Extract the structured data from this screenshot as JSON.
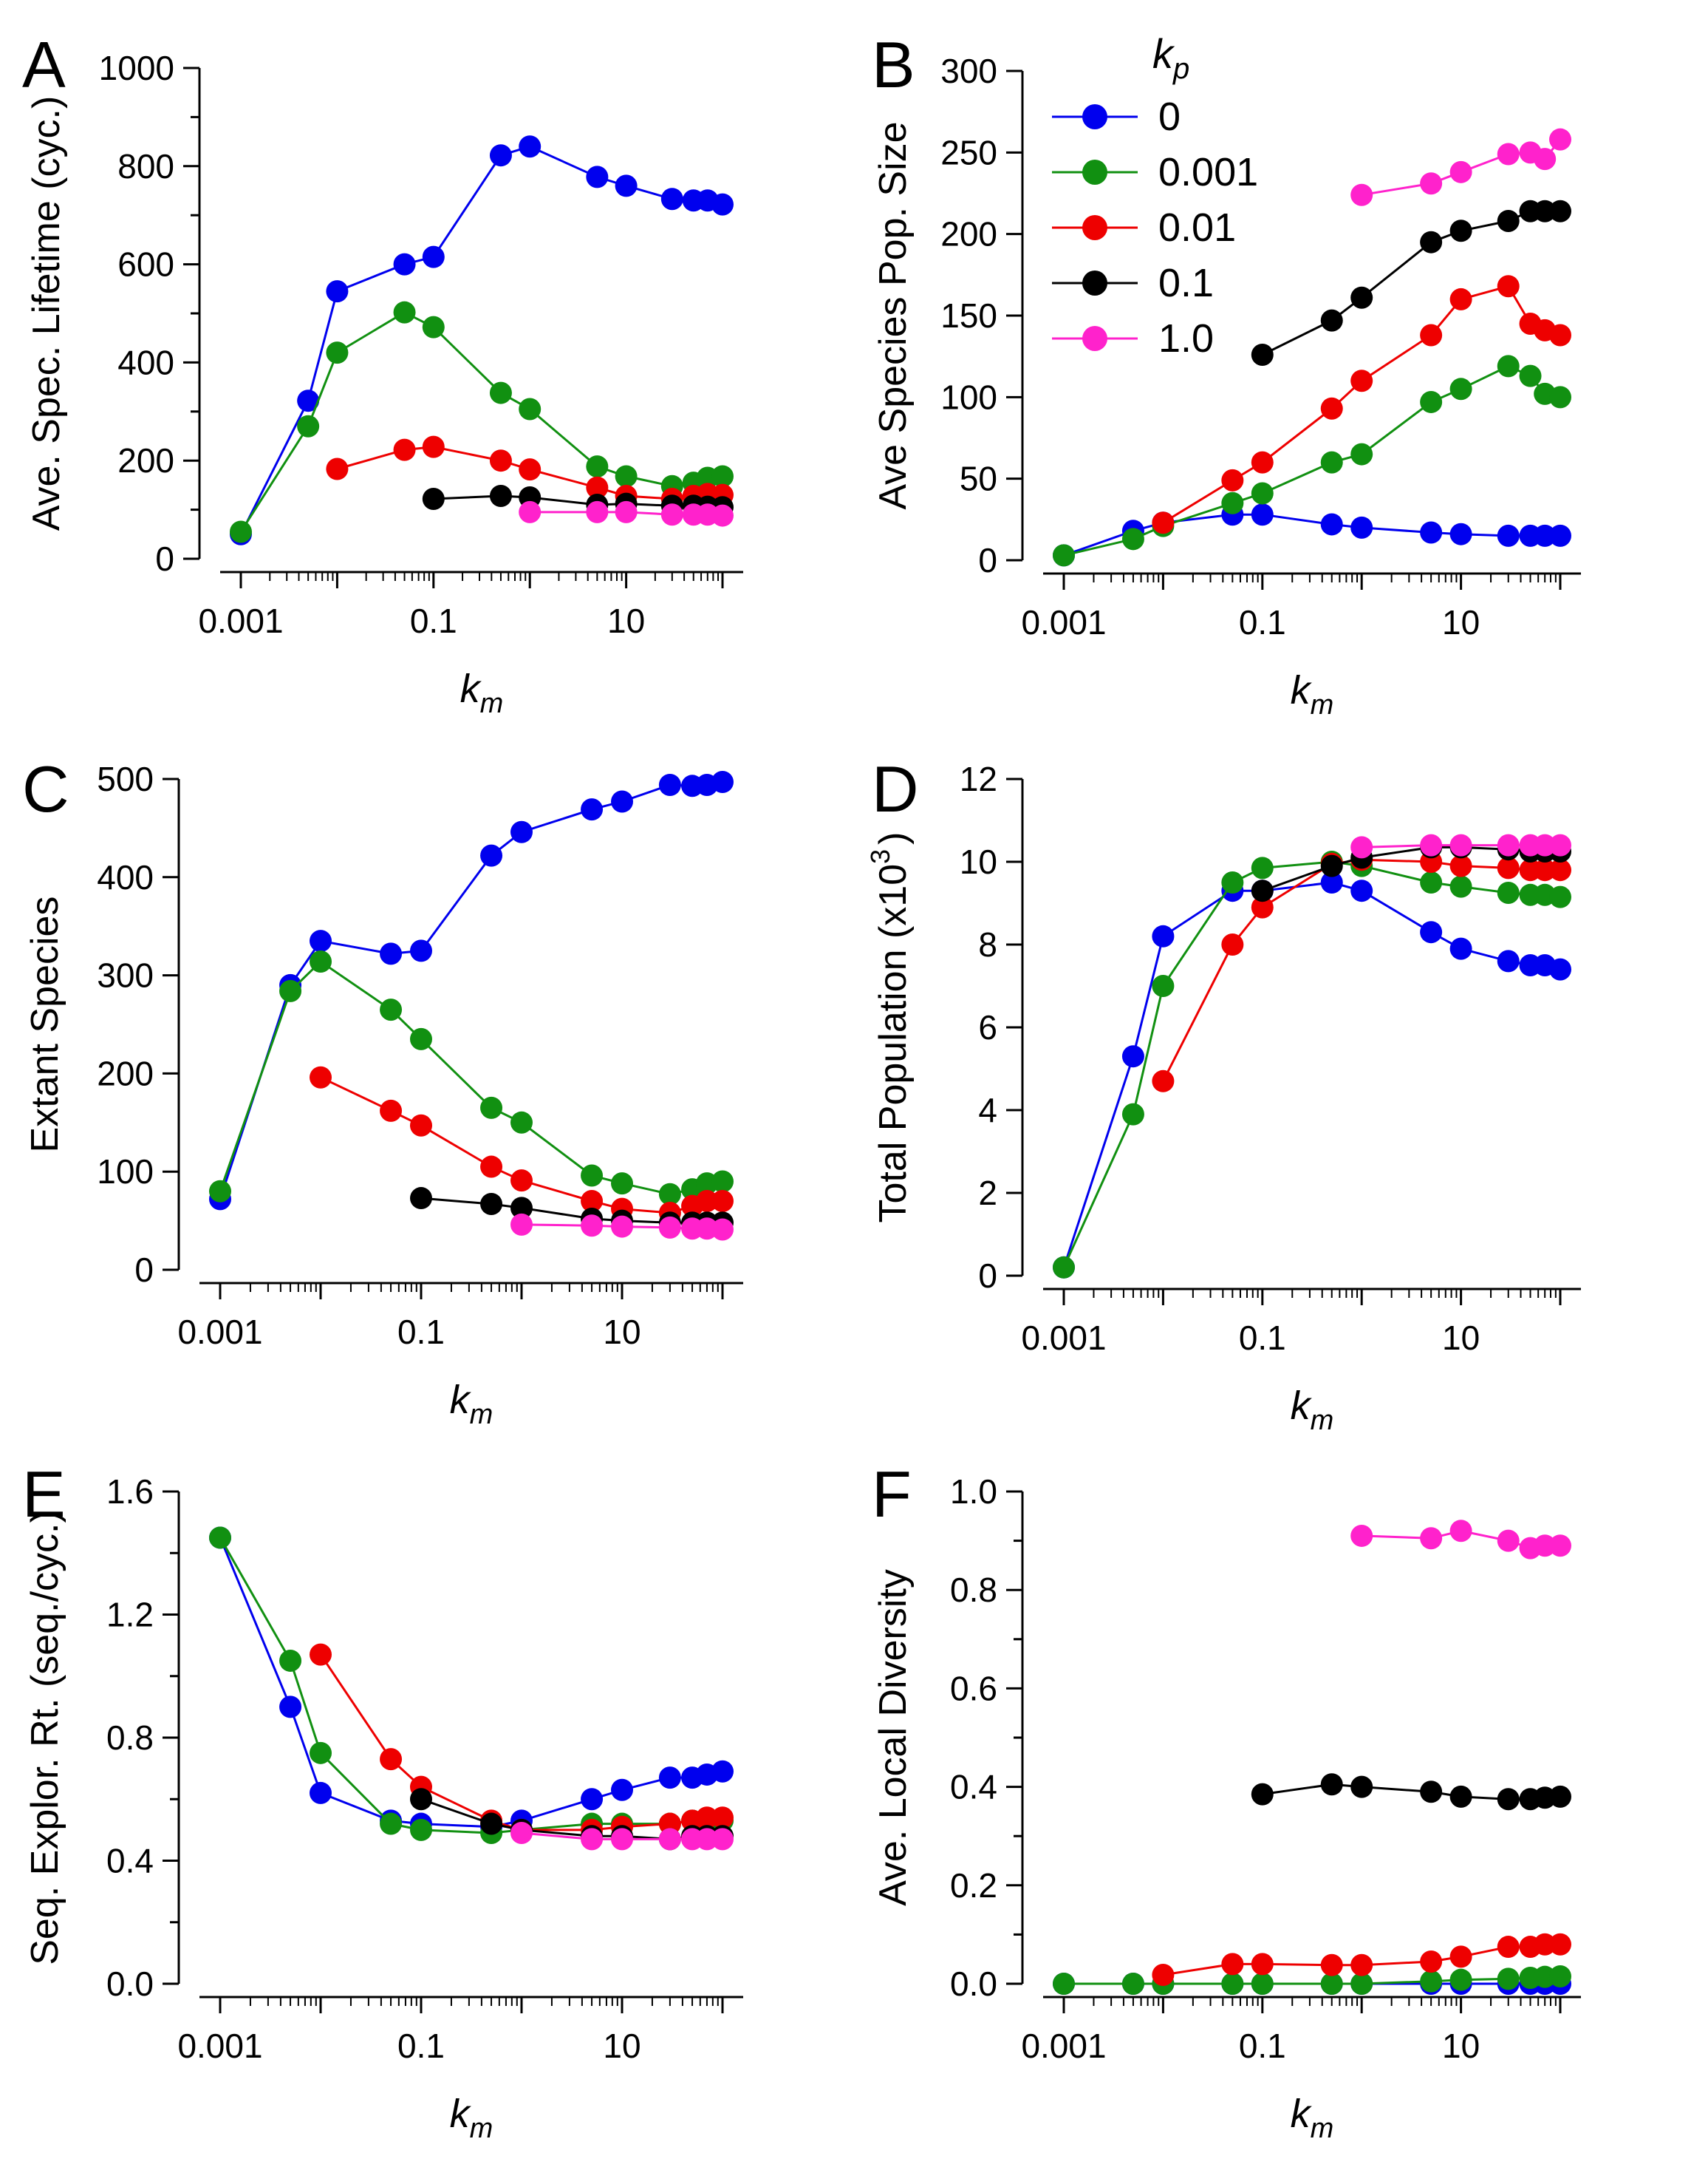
{
  "colors": {
    "0": "#0000ee",
    "0.001": "#119011",
    "0.01": "#ee0000",
    "0.1": "#000000",
    "1.0": "#ff22cc"
  },
  "legend": {
    "title": "k",
    "title_sub": "p",
    "entries": [
      "0",
      "0.001",
      "0.01",
      "0.1",
      "1.0"
    ]
  },
  "chart_data": [
    {
      "panel": "A",
      "type": "line",
      "ylabel": "Ave. Spec. Lifetime (cyc.)",
      "xlabel": "k",
      "xlabel_sub": "m",
      "xscale": "log",
      "xlim": [
        0.001,
        100
      ],
      "xticks": [
        0.001,
        0.1,
        10
      ],
      "xtick_labels": [
        "0.001",
        "0.1",
        "10"
      ],
      "ylim": [
        0,
        1000
      ],
      "yticks": [
        0,
        200,
        400,
        600,
        800,
        1000
      ],
      "ytick_labels": [
        "0",
        "200",
        "400",
        "600",
        "800",
        "1000"
      ],
      "yminor": [
        100,
        300,
        500,
        700,
        900
      ],
      "series": [
        {
          "name": "0",
          "x": [
            0.001,
            0.005,
            0.01,
            0.05,
            0.1,
            0.5,
            1,
            5,
            10,
            30,
            50,
            70,
            100
          ],
          "y": [
            50,
            322,
            545,
            600,
            615,
            822,
            840,
            778,
            760,
            733,
            730,
            730,
            722
          ]
        },
        {
          "name": "0.001",
          "x": [
            0.001,
            0.005,
            0.01,
            0.05,
            0.1,
            0.5,
            1,
            5,
            10,
            30,
            50,
            70,
            100
          ],
          "y": [
            55,
            270,
            420,
            502,
            472,
            338,
            305,
            188,
            168,
            148,
            155,
            165,
            168
          ]
        },
        {
          "name": "0.01",
          "x": [
            0.01,
            0.05,
            0.1,
            0.5,
            1,
            5,
            10,
            30,
            50,
            70,
            100
          ],
          "y": [
            183,
            222,
            228,
            200,
            182,
            145,
            128,
            122,
            128,
            132,
            130
          ]
        },
        {
          "name": "0.1",
          "x": [
            0.1,
            0.5,
            1,
            5,
            10,
            30,
            50,
            70,
            100
          ],
          "y": [
            122,
            128,
            125,
            110,
            112,
            108,
            108,
            106,
            105
          ]
        },
        {
          "name": "1.0",
          "x": [
            1,
            5,
            10,
            30,
            50,
            70,
            100
          ],
          "y": [
            95,
            95,
            95,
            90,
            90,
            90,
            88
          ]
        }
      ]
    },
    {
      "panel": "B",
      "type": "line",
      "ylabel": "Ave Species Pop. Size",
      "xlabel": "k",
      "xlabel_sub": "m",
      "xscale": "log",
      "xlim": [
        0.001,
        100
      ],
      "xticks": [
        0.001,
        0.1,
        10
      ],
      "xtick_labels": [
        "0.001",
        "0.1",
        "10"
      ],
      "ylim": [
        0,
        300
      ],
      "yticks": [
        0,
        50,
        100,
        150,
        200,
        250,
        300
      ],
      "ytick_labels": [
        "0",
        "50",
        "100",
        "150",
        "200",
        "250",
        "300"
      ],
      "yminor": [],
      "series": [
        {
          "name": "0",
          "x": [
            0.001,
            0.005,
            0.01,
            0.05,
            0.1,
            0.5,
            1,
            5,
            10,
            30,
            50,
            70,
            100
          ],
          "y": [
            3,
            18,
            23,
            28,
            28,
            22,
            20,
            17,
            16,
            15,
            15,
            15,
            15
          ]
        },
        {
          "name": "0.001",
          "x": [
            0.001,
            0.005,
            0.01,
            0.05,
            0.1,
            0.5,
            1,
            5,
            10,
            30,
            50,
            70,
            100
          ],
          "y": [
            3,
            13,
            21,
            35,
            41,
            60,
            65,
            97,
            105,
            119,
            113,
            102,
            100
          ]
        },
        {
          "name": "0.01",
          "x": [
            0.01,
            0.05,
            0.1,
            0.5,
            1,
            5,
            10,
            30,
            50,
            70,
            100
          ],
          "y": [
            23,
            49,
            60,
            93,
            110,
            138,
            160,
            168,
            145,
            141,
            138
          ]
        },
        {
          "name": "0.1",
          "x": [
            0.1,
            0.5,
            1,
            5,
            10,
            30,
            50,
            70,
            100
          ],
          "y": [
            126,
            147,
            161,
            195,
            202,
            208,
            214,
            214,
            214
          ]
        },
        {
          "name": "1.0",
          "x": [
            1,
            5,
            10,
            30,
            50,
            70,
            100
          ],
          "y": [
            224,
            231,
            238,
            249,
            250,
            246,
            258
          ]
        }
      ]
    },
    {
      "panel": "C",
      "type": "line",
      "ylabel": "Extant Species",
      "xlabel": "k",
      "xlabel_sub": "m",
      "xscale": "log",
      "xlim": [
        0.001,
        100
      ],
      "xticks": [
        0.001,
        0.1,
        10
      ],
      "xtick_labels": [
        "0.001",
        "0.1",
        "10"
      ],
      "ylim": [
        0,
        500
      ],
      "yticks": [
        0,
        100,
        200,
        300,
        400,
        500
      ],
      "ytick_labels": [
        "0",
        "100",
        "200",
        "300",
        "400",
        "500"
      ],
      "yminor": [],
      "series": [
        {
          "name": "0",
          "x": [
            0.001,
            0.005,
            0.01,
            0.05,
            0.1,
            0.5,
            1,
            5,
            10,
            30,
            50,
            70,
            100
          ],
          "y": [
            72,
            290,
            335,
            322,
            325,
            422,
            446,
            469,
            477,
            494,
            493,
            494,
            497
          ]
        },
        {
          "name": "0.001",
          "x": [
            0.001,
            0.005,
            0.01,
            0.05,
            0.1,
            0.5,
            1,
            5,
            10,
            30,
            50,
            70,
            100
          ],
          "y": [
            80,
            284,
            314,
            265,
            235,
            165,
            150,
            96,
            88,
            77,
            82,
            88,
            90
          ]
        },
        {
          "name": "0.01",
          "x": [
            0.01,
            0.05,
            0.1,
            0.5,
            1,
            5,
            10,
            30,
            50,
            70,
            100
          ],
          "y": [
            196,
            162,
            147,
            105,
            91,
            70,
            62,
            58,
            65,
            70,
            70
          ]
        },
        {
          "name": "0.1",
          "x": [
            0.1,
            0.5,
            1,
            5,
            10,
            30,
            50,
            70,
            100
          ],
          "y": [
            73,
            67,
            63,
            52,
            50,
            48,
            48,
            48,
            48
          ]
        },
        {
          "name": "1.0",
          "x": [
            1,
            5,
            10,
            30,
            50,
            70,
            100
          ],
          "y": [
            46,
            45,
            44,
            43,
            42,
            42,
            41
          ]
        }
      ]
    },
    {
      "panel": "D",
      "type": "line",
      "ylabel": "Total Population (x10",
      "ylabel_sup": "3",
      "ylabel_end": ")",
      "xlabel": "k",
      "xlabel_sub": "m",
      "xscale": "log",
      "xlim": [
        0.001,
        100
      ],
      "xticks": [
        0.001,
        0.1,
        10
      ],
      "xtick_labels": [
        "0.001",
        "0.1",
        "10"
      ],
      "ylim": [
        0,
        12
      ],
      "yticks": [
        0,
        2,
        4,
        6,
        8,
        10,
        12
      ],
      "ytick_labels": [
        "0",
        "2",
        "4",
        "6",
        "8",
        "10",
        "12"
      ],
      "yminor": [],
      "series": [
        {
          "name": "0",
          "x": [
            0.001,
            0.005,
            0.01,
            0.05,
            0.1,
            0.5,
            1,
            5,
            10,
            30,
            50,
            70,
            100
          ],
          "y": [
            0.2,
            5.3,
            8.2,
            9.3,
            9.3,
            9.5,
            9.3,
            8.3,
            7.9,
            7.6,
            7.5,
            7.5,
            7.4
          ]
        },
        {
          "name": "0.001",
          "x": [
            0.001,
            0.005,
            0.01,
            0.05,
            0.1,
            0.5,
            1,
            5,
            10,
            30,
            50,
            70,
            100
          ],
          "y": [
            0.2,
            3.9,
            7.0,
            9.5,
            9.85,
            10.0,
            9.9,
            9.5,
            9.4,
            9.25,
            9.2,
            9.2,
            9.15
          ]
        },
        {
          "name": "0.01",
          "x": [
            0.01,
            0.05,
            0.1,
            0.5,
            1,
            5,
            10,
            30,
            50,
            70,
            100
          ],
          "y": [
            4.7,
            8.0,
            8.9,
            9.95,
            10.05,
            10.0,
            9.9,
            9.85,
            9.8,
            9.8,
            9.8
          ]
        },
        {
          "name": "0.1",
          "x": [
            0.1,
            0.5,
            1,
            5,
            10,
            30,
            50,
            70,
            100
          ],
          "y": [
            9.3,
            9.9,
            10.1,
            10.35,
            10.35,
            10.3,
            10.25,
            10.25,
            10.25
          ]
        },
        {
          "name": "1.0",
          "x": [
            1,
            5,
            10,
            30,
            50,
            70,
            100
          ],
          "y": [
            10.35,
            10.4,
            10.4,
            10.4,
            10.4,
            10.4,
            10.4
          ]
        }
      ]
    },
    {
      "panel": "E",
      "type": "line",
      "ylabel": "Seq. Explor. Rt. (seq./cyc.)",
      "xlabel": "k",
      "xlabel_sub": "m",
      "xscale": "log",
      "xlim": [
        0.001,
        100
      ],
      "xticks": [
        0.001,
        0.1,
        10
      ],
      "xtick_labels": [
        "0.001",
        "0.1",
        "10"
      ],
      "ylim": [
        0,
        1.6
      ],
      "yticks": [
        0,
        0.4,
        0.8,
        1.2,
        1.6
      ],
      "ytick_labels": [
        "0.0",
        "0.4",
        "0.8",
        "1.2",
        "1.6"
      ],
      "yminor": [
        0.2,
        0.6,
        1.0,
        1.4
      ],
      "series": [
        {
          "name": "0",
          "x": [
            0.001,
            0.005,
            0.01,
            0.05,
            0.1,
            0.5,
            1,
            5,
            10,
            30,
            50,
            70,
            100
          ],
          "y": [
            1.45,
            0.9,
            0.62,
            0.53,
            0.52,
            0.51,
            0.53,
            0.6,
            0.63,
            0.67,
            0.67,
            0.68,
            0.69
          ]
        },
        {
          "name": "0.001",
          "x": [
            0.001,
            0.005,
            0.01,
            0.05,
            0.1,
            0.5,
            1,
            5,
            10,
            30,
            50,
            70,
            100
          ],
          "y": [
            1.45,
            1.05,
            0.75,
            0.52,
            0.5,
            0.49,
            0.5,
            0.52,
            0.52,
            0.52,
            0.53,
            0.53,
            0.53
          ]
        },
        {
          "name": "0.01",
          "x": [
            0.01,
            0.05,
            0.1,
            0.5,
            1,
            5,
            10,
            30,
            50,
            70,
            100
          ],
          "y": [
            1.07,
            0.73,
            0.64,
            0.53,
            0.5,
            0.5,
            0.51,
            0.52,
            0.53,
            0.54,
            0.54
          ]
        },
        {
          "name": "0.1",
          "x": [
            0.1,
            0.5,
            1,
            5,
            10,
            30,
            50,
            70,
            100
          ],
          "y": [
            0.6,
            0.52,
            0.5,
            0.48,
            0.48,
            0.47,
            0.48,
            0.48,
            0.48
          ]
        },
        {
          "name": "1.0",
          "x": [
            1,
            5,
            10,
            30,
            50,
            70,
            100
          ],
          "y": [
            0.49,
            0.47,
            0.47,
            0.47,
            0.47,
            0.47,
            0.47
          ]
        }
      ]
    },
    {
      "panel": "F",
      "type": "line",
      "ylabel": "Ave. Local Diversity",
      "xlabel": "k",
      "xlabel_sub": "m",
      "xscale": "log",
      "xlim": [
        0.001,
        100
      ],
      "xticks": [
        0.001,
        0.1,
        10
      ],
      "xtick_labels": [
        "0.001",
        "0.1",
        "10"
      ],
      "ylim": [
        0,
        1.0
      ],
      "yticks": [
        0,
        0.2,
        0.4,
        0.6,
        0.8,
        1.0
      ],
      "ytick_labels": [
        "0.0",
        "0.2",
        "0.4",
        "0.6",
        "0.8",
        "1.0"
      ],
      "yminor": [
        0.1,
        0.3,
        0.5,
        0.7,
        0.9
      ],
      "series": [
        {
          "name": "0",
          "x": [
            0.001,
            0.005,
            0.01,
            0.05,
            0.1,
            0.5,
            1,
            5,
            10,
            30,
            50,
            70,
            100
          ],
          "y": [
            0,
            0,
            0,
            0,
            0,
            0,
            0,
            0,
            0,
            0,
            0,
            0,
            0
          ]
        },
        {
          "name": "0.001",
          "x": [
            0.001,
            0.005,
            0.01,
            0.05,
            0.1,
            0.5,
            1,
            5,
            10,
            30,
            50,
            70,
            100
          ],
          "y": [
            0,
            0,
            0,
            0,
            0,
            0,
            0,
            0.005,
            0.008,
            0.01,
            0.012,
            0.014,
            0.015
          ]
        },
        {
          "name": "0.01",
          "x": [
            0.01,
            0.05,
            0.1,
            0.5,
            1,
            5,
            10,
            30,
            50,
            70,
            100
          ],
          "y": [
            0.018,
            0.04,
            0.04,
            0.038,
            0.038,
            0.045,
            0.055,
            0.075,
            0.075,
            0.08,
            0.08
          ]
        },
        {
          "name": "0.1",
          "x": [
            0.1,
            0.5,
            1,
            5,
            10,
            30,
            50,
            70,
            100
          ],
          "y": [
            0.385,
            0.405,
            0.4,
            0.39,
            0.38,
            0.375,
            0.375,
            0.378,
            0.38
          ]
        },
        {
          "name": "1.0",
          "x": [
            1,
            5,
            10,
            30,
            50,
            70,
            100
          ],
          "y": [
            0.91,
            0.905,
            0.92,
            0.9,
            0.885,
            0.89,
            0.89
          ]
        }
      ]
    }
  ]
}
